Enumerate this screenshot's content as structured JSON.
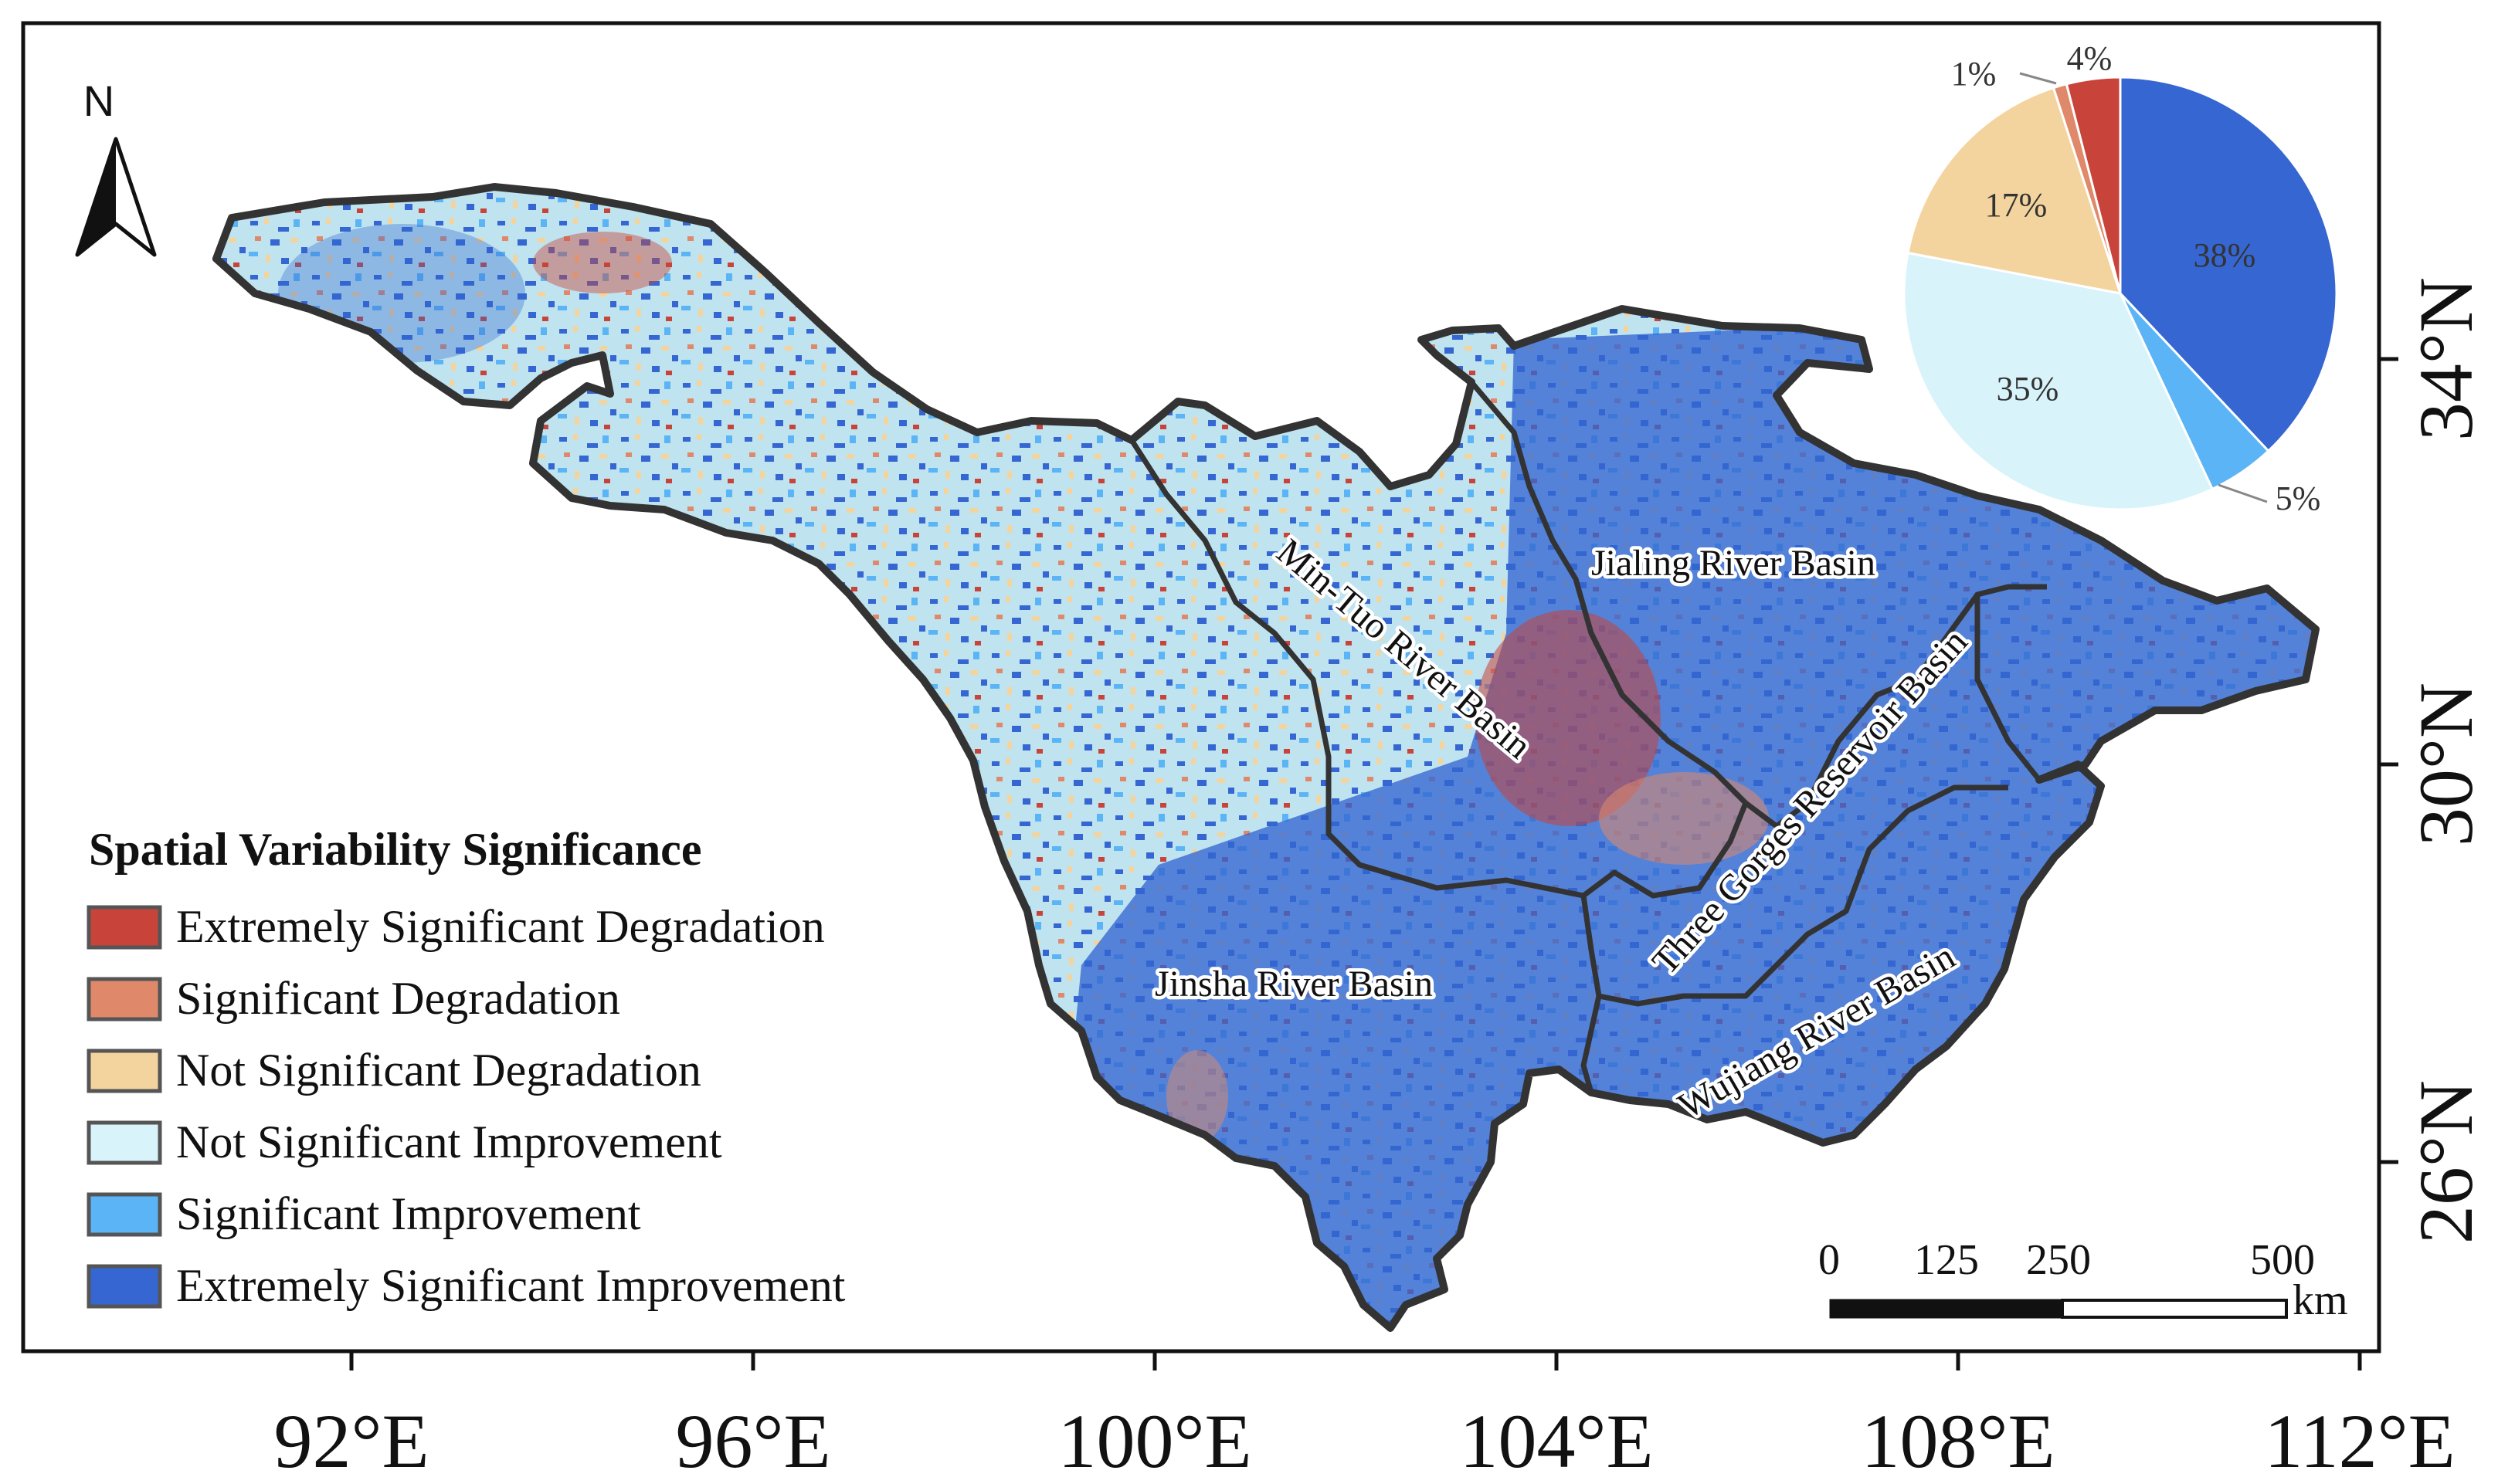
{
  "map": {
    "x_ticks": [
      "92°E",
      "96°E",
      "100°E",
      "104°E",
      "108°E",
      "112°E"
    ],
    "y_ticks": [
      "34°N",
      "30°N",
      "26°N"
    ],
    "north_label": "N",
    "basins": [
      {
        "id": "jinsha",
        "label": "Jinsha River Basin"
      },
      {
        "id": "mintuo",
        "label": "Min-Tuo River Basin"
      },
      {
        "id": "jialing",
        "label": "Jialing River Basin"
      },
      {
        "id": "threegorges",
        "label": "Three Gorges Reservoir Basin"
      },
      {
        "id": "wujiang",
        "label": "Wujiang River Basin"
      }
    ],
    "scale_bar": {
      "ticks": [
        "0",
        "125",
        "250",
        "500"
      ],
      "unit": "km"
    }
  },
  "legend": {
    "title": "Spatial Variability Significance",
    "items": [
      {
        "label": "Extremely Significant Degradation",
        "color": "#c8443a"
      },
      {
        "label": "Significant Degradation",
        "color": "#e0896a"
      },
      {
        "label": "Not Significant Degradation",
        "color": "#f4d49e"
      },
      {
        "label": "Not Significant Improvement",
        "color": "#d9f3fb"
      },
      {
        "label": "Significant Improvement",
        "color": "#5ab4f5"
      },
      {
        "label": "Extremely Significant Improvement",
        "color": "#3566d1"
      }
    ]
  },
  "chart_data": {
    "type": "pie",
    "slices": [
      {
        "category": "Extremely Significant Improvement",
        "value": 38,
        "label": "38%",
        "color": "#3566d1"
      },
      {
        "category": "Significant Improvement",
        "value": 5,
        "label": "5%",
        "color": "#5ab4f5"
      },
      {
        "category": "Not Significant Improvement",
        "value": 35,
        "label": "35%",
        "color": "#d9f3fb"
      },
      {
        "category": "Not Significant Degradation",
        "value": 17,
        "label": "17%",
        "color": "#f4d49e"
      },
      {
        "category": "Significant Degradation",
        "value": 1,
        "label": "1%",
        "color": "#e0896a"
      },
      {
        "category": "Extremely Significant Degradation",
        "value": 4,
        "label": "4%",
        "color": "#c8443a"
      }
    ]
  }
}
